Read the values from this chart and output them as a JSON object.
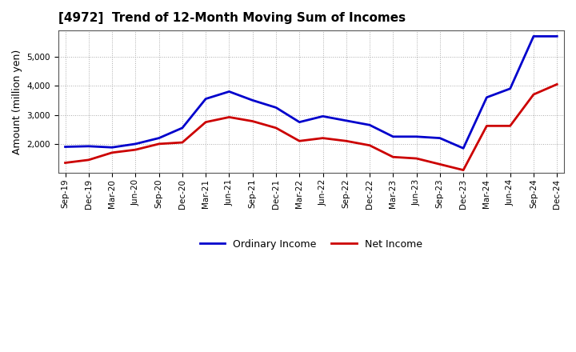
{
  "title": "[4972]  Trend of 12-Month Moving Sum of Incomes",
  "ylabel": "Amount (million yen)",
  "x_labels": [
    "Sep-19",
    "Dec-19",
    "Mar-20",
    "Jun-20",
    "Sep-20",
    "Dec-20",
    "Mar-21",
    "Jun-21",
    "Sep-21",
    "Dec-21",
    "Mar-22",
    "Jun-22",
    "Sep-22",
    "Dec-22",
    "Mar-23",
    "Jun-23",
    "Sep-23",
    "Dec-23",
    "Mar-24",
    "Jun-24",
    "Sep-24",
    "Dec-24"
  ],
  "ordinary_income": [
    1900,
    1920,
    1880,
    2000,
    2200,
    2550,
    3550,
    3800,
    3500,
    3250,
    2750,
    2950,
    2800,
    2650,
    2250,
    2250,
    2200,
    1850,
    3600,
    3900,
    5700,
    5700
  ],
  "net_income": [
    1350,
    1450,
    1700,
    1800,
    2000,
    2050,
    2750,
    2920,
    2780,
    2550,
    2100,
    2200,
    2100,
    1950,
    1550,
    1500,
    1300,
    1100,
    2620,
    2620,
    3700,
    4050
  ],
  "ordinary_color": "#0000cc",
  "net_color": "#cc0000",
  "ylim_min": 1000,
  "ylim_max": 5900,
  "yticks": [
    2000,
    3000,
    4000,
    5000
  ],
  "background_color": "#ffffff",
  "grid_color": "#aaaaaa",
  "legend_ordinary": "Ordinary Income",
  "legend_net": "Net Income"
}
